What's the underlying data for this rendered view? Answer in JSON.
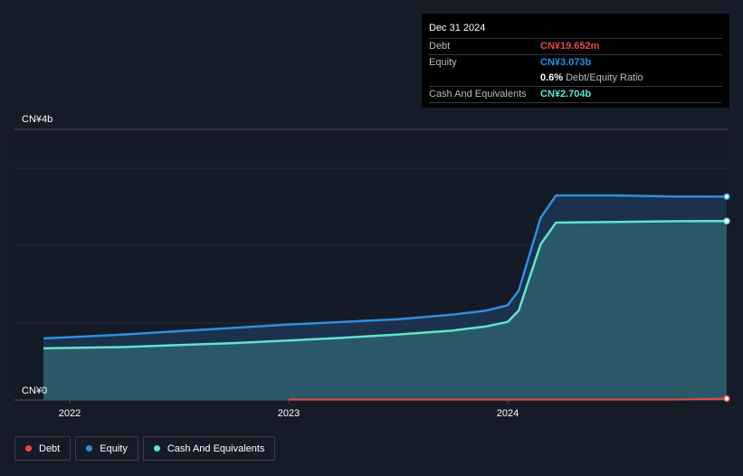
{
  "tooltip": {
    "date": "Dec 31 2024",
    "rows": [
      {
        "label": "Debt",
        "value": "CN¥19.652m",
        "color": "#e8484a"
      },
      {
        "label": "Equity",
        "value": "CN¥3.073b",
        "color": "#2f8fe0"
      },
      {
        "label": "",
        "value": "0.6%",
        "sub": "Debt/Equity Ratio",
        "color": "#ffffff"
      },
      {
        "label": "Cash And Equivalents",
        "value": "CN¥2.704b",
        "color": "#5fe3cf"
      }
    ]
  },
  "legend": [
    {
      "label": "Debt",
      "color": "#e8484a"
    },
    {
      "label": "Equity",
      "color": "#2f8fe0"
    },
    {
      "label": "Cash And Equivalents",
      "color": "#5fe3cf"
    }
  ],
  "chart_data": {
    "type": "area",
    "y_tick_labels": [
      "CN¥4b",
      "CN¥0"
    ],
    "ylim": [
      0,
      3.5
    ],
    "x_ticks": [
      {
        "label": "2022",
        "t": 2022.0
      },
      {
        "label": "2023",
        "t": 2023.0
      },
      {
        "label": "2024",
        "t": 2024.0
      }
    ],
    "xlim": [
      2021.88,
      2025.0
    ],
    "grid": true,
    "series": [
      {
        "name": "Equity",
        "color": "#2f8fe0",
        "points": [
          [
            2021.88,
            0.93
          ],
          [
            2022.25,
            0.99
          ],
          [
            2022.5,
            1.04
          ],
          [
            2022.75,
            1.09
          ],
          [
            2023.0,
            1.14
          ],
          [
            2023.25,
            1.18
          ],
          [
            2023.5,
            1.22
          ],
          [
            2023.75,
            1.29
          ],
          [
            2023.9,
            1.35
          ],
          [
            2024.0,
            1.43
          ],
          [
            2024.05,
            1.65
          ],
          [
            2024.1,
            2.2
          ],
          [
            2024.15,
            2.75
          ],
          [
            2024.22,
            3.09
          ],
          [
            2024.5,
            3.09
          ],
          [
            2024.75,
            3.075
          ],
          [
            2025.0,
            3.073
          ]
        ]
      },
      {
        "name": "Cash And Equivalents",
        "color": "#5fe3cf",
        "points": [
          [
            2021.88,
            0.78
          ],
          [
            2022.25,
            0.8
          ],
          [
            2022.5,
            0.83
          ],
          [
            2022.75,
            0.86
          ],
          [
            2023.0,
            0.9
          ],
          [
            2023.25,
            0.94
          ],
          [
            2023.5,
            0.99
          ],
          [
            2023.75,
            1.05
          ],
          [
            2023.9,
            1.11
          ],
          [
            2024.0,
            1.18
          ],
          [
            2024.05,
            1.35
          ],
          [
            2024.1,
            1.85
          ],
          [
            2024.15,
            2.35
          ],
          [
            2024.22,
            2.68
          ],
          [
            2024.5,
            2.69
          ],
          [
            2024.75,
            2.7
          ],
          [
            2025.0,
            2.704
          ]
        ]
      },
      {
        "name": "Debt",
        "color": "#e8484a",
        "points": [
          [
            2023.0,
            0.005
          ],
          [
            2024.0,
            0.005
          ],
          [
            2024.75,
            0.006
          ],
          [
            2025.0,
            0.0197
          ]
        ]
      }
    ]
  }
}
